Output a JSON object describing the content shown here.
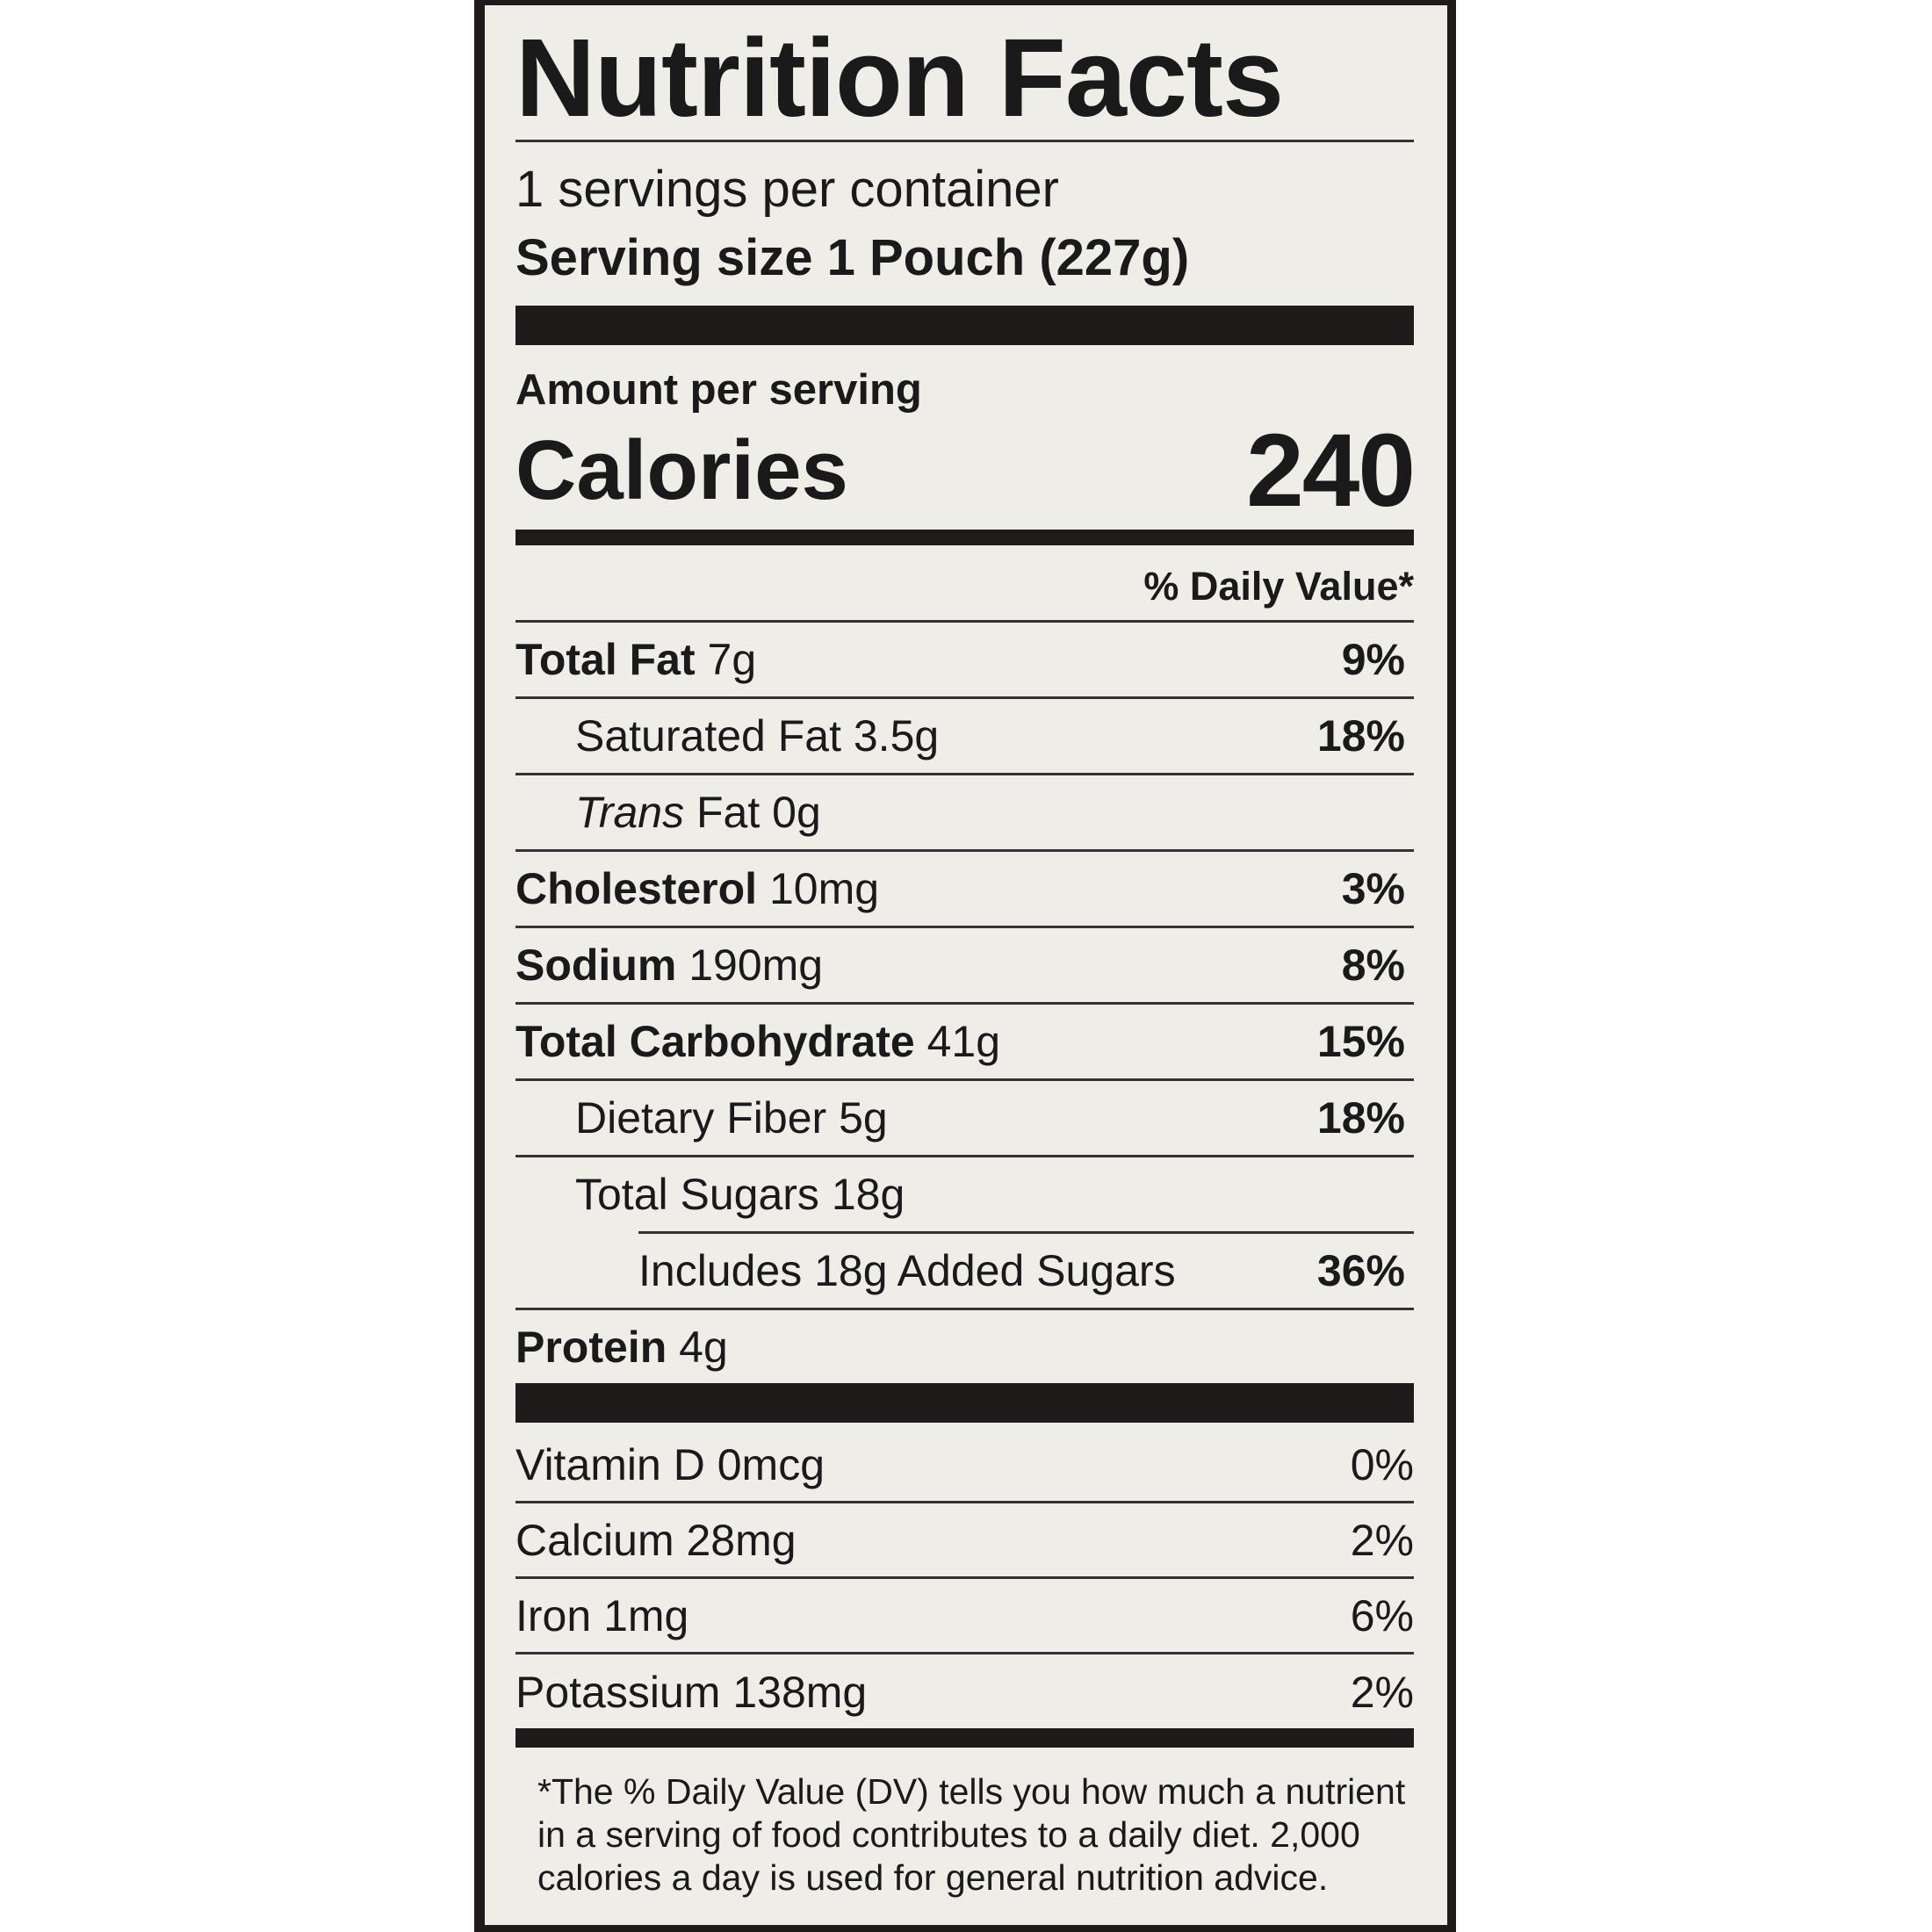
{
  "title": "Nutrition Facts",
  "servings_per_container": "1 servings per container",
  "serving_size_label": "Serving size",
  "serving_size_value": "1 Pouch (227g)",
  "amount_per_serving": "Amount per serving",
  "calories_label": "Calories",
  "calories_value": "240",
  "daily_value_header": "% Daily Value*",
  "nutrients": [
    {
      "name": "Total Fat",
      "amount": "7g",
      "dv": "9%"
    },
    {
      "name": "Saturated Fat",
      "amount": "3.5g",
      "dv": "18%"
    },
    {
      "name": "Trans",
      "name_suffix": "Fat",
      "amount": "0g",
      "dv": ""
    },
    {
      "name": "Cholesterol",
      "amount": "10mg",
      "dv": "3%"
    },
    {
      "name": "Sodium",
      "amount": "190mg",
      "dv": "8%"
    },
    {
      "name": "Total Carbohydrate",
      "amount": "41g",
      "dv": "15%"
    },
    {
      "name": "Dietary Fiber",
      "amount": "5g",
      "dv": "18%"
    },
    {
      "name": "Total Sugars",
      "amount": "18g",
      "dv": ""
    },
    {
      "name": "Includes 18g Added Sugars",
      "amount": "",
      "dv": "36%"
    },
    {
      "name": "Protein",
      "amount": "4g",
      "dv": ""
    }
  ],
  "vitamins": [
    {
      "name": "Vitamin D",
      "amount": "0mcg",
      "dv": "0%"
    },
    {
      "name": "Calcium",
      "amount": "28mg",
      "dv": "2%"
    },
    {
      "name": "Iron",
      "amount": "1mg",
      "dv": "6%"
    },
    {
      "name": "Potassium",
      "amount": "138mg",
      "dv": "2%"
    }
  ],
  "footnote": "*The % Daily Value (DV) tells you how much a nutrient in a serving of food contributes to a daily diet. 2,000 calories a day is used for general nutrition advice."
}
